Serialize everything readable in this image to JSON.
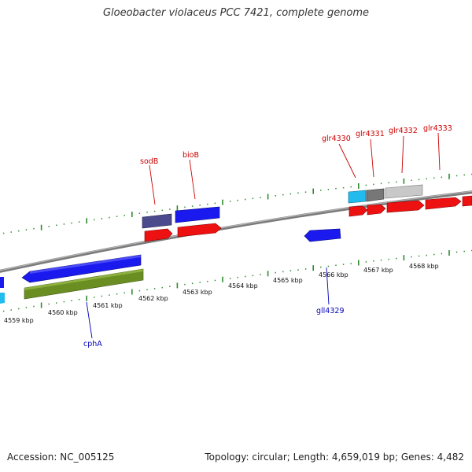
{
  "title": "Gloeobacter violaceus PCC 7421, complete genome",
  "accession": "Accession: NC_005125",
  "summary": "Topology: circular; Length: 4,659,019 bp; Genes: 4,482",
  "colors": {
    "backbone": "#8a8a8a",
    "tick": "#2e8b2e",
    "forward_label": "#cc0000",
    "reverse_label": "#0000bb",
    "cds_red": "#ee1111",
    "cds_blue": "#1a1aee",
    "cds_cyan": "#22bbee",
    "cds_navy": "#4a4a8c",
    "cds_grey": "#777777",
    "cds_lightgrey": "#c8c8c8",
    "cds_green": "#6b8e23"
  },
  "kbp_labels": [
    "4559 kbp",
    "4560 kbp",
    "4561 kbp",
    "4562 kbp",
    "4563 kbp",
    "4564 kbp",
    "4565 kbp",
    "4566 kbp",
    "4567 kbp",
    "4568 kbp"
  ],
  "gene_labels": {
    "sodB": "sodB",
    "bioB": "bioB",
    "glr4330": "glr4330",
    "glr4331": "glr4331",
    "glr4332": "glr4332",
    "glr4333": "glr4333",
    "cphA": "cphA",
    "gll4329": "gll4329"
  }
}
